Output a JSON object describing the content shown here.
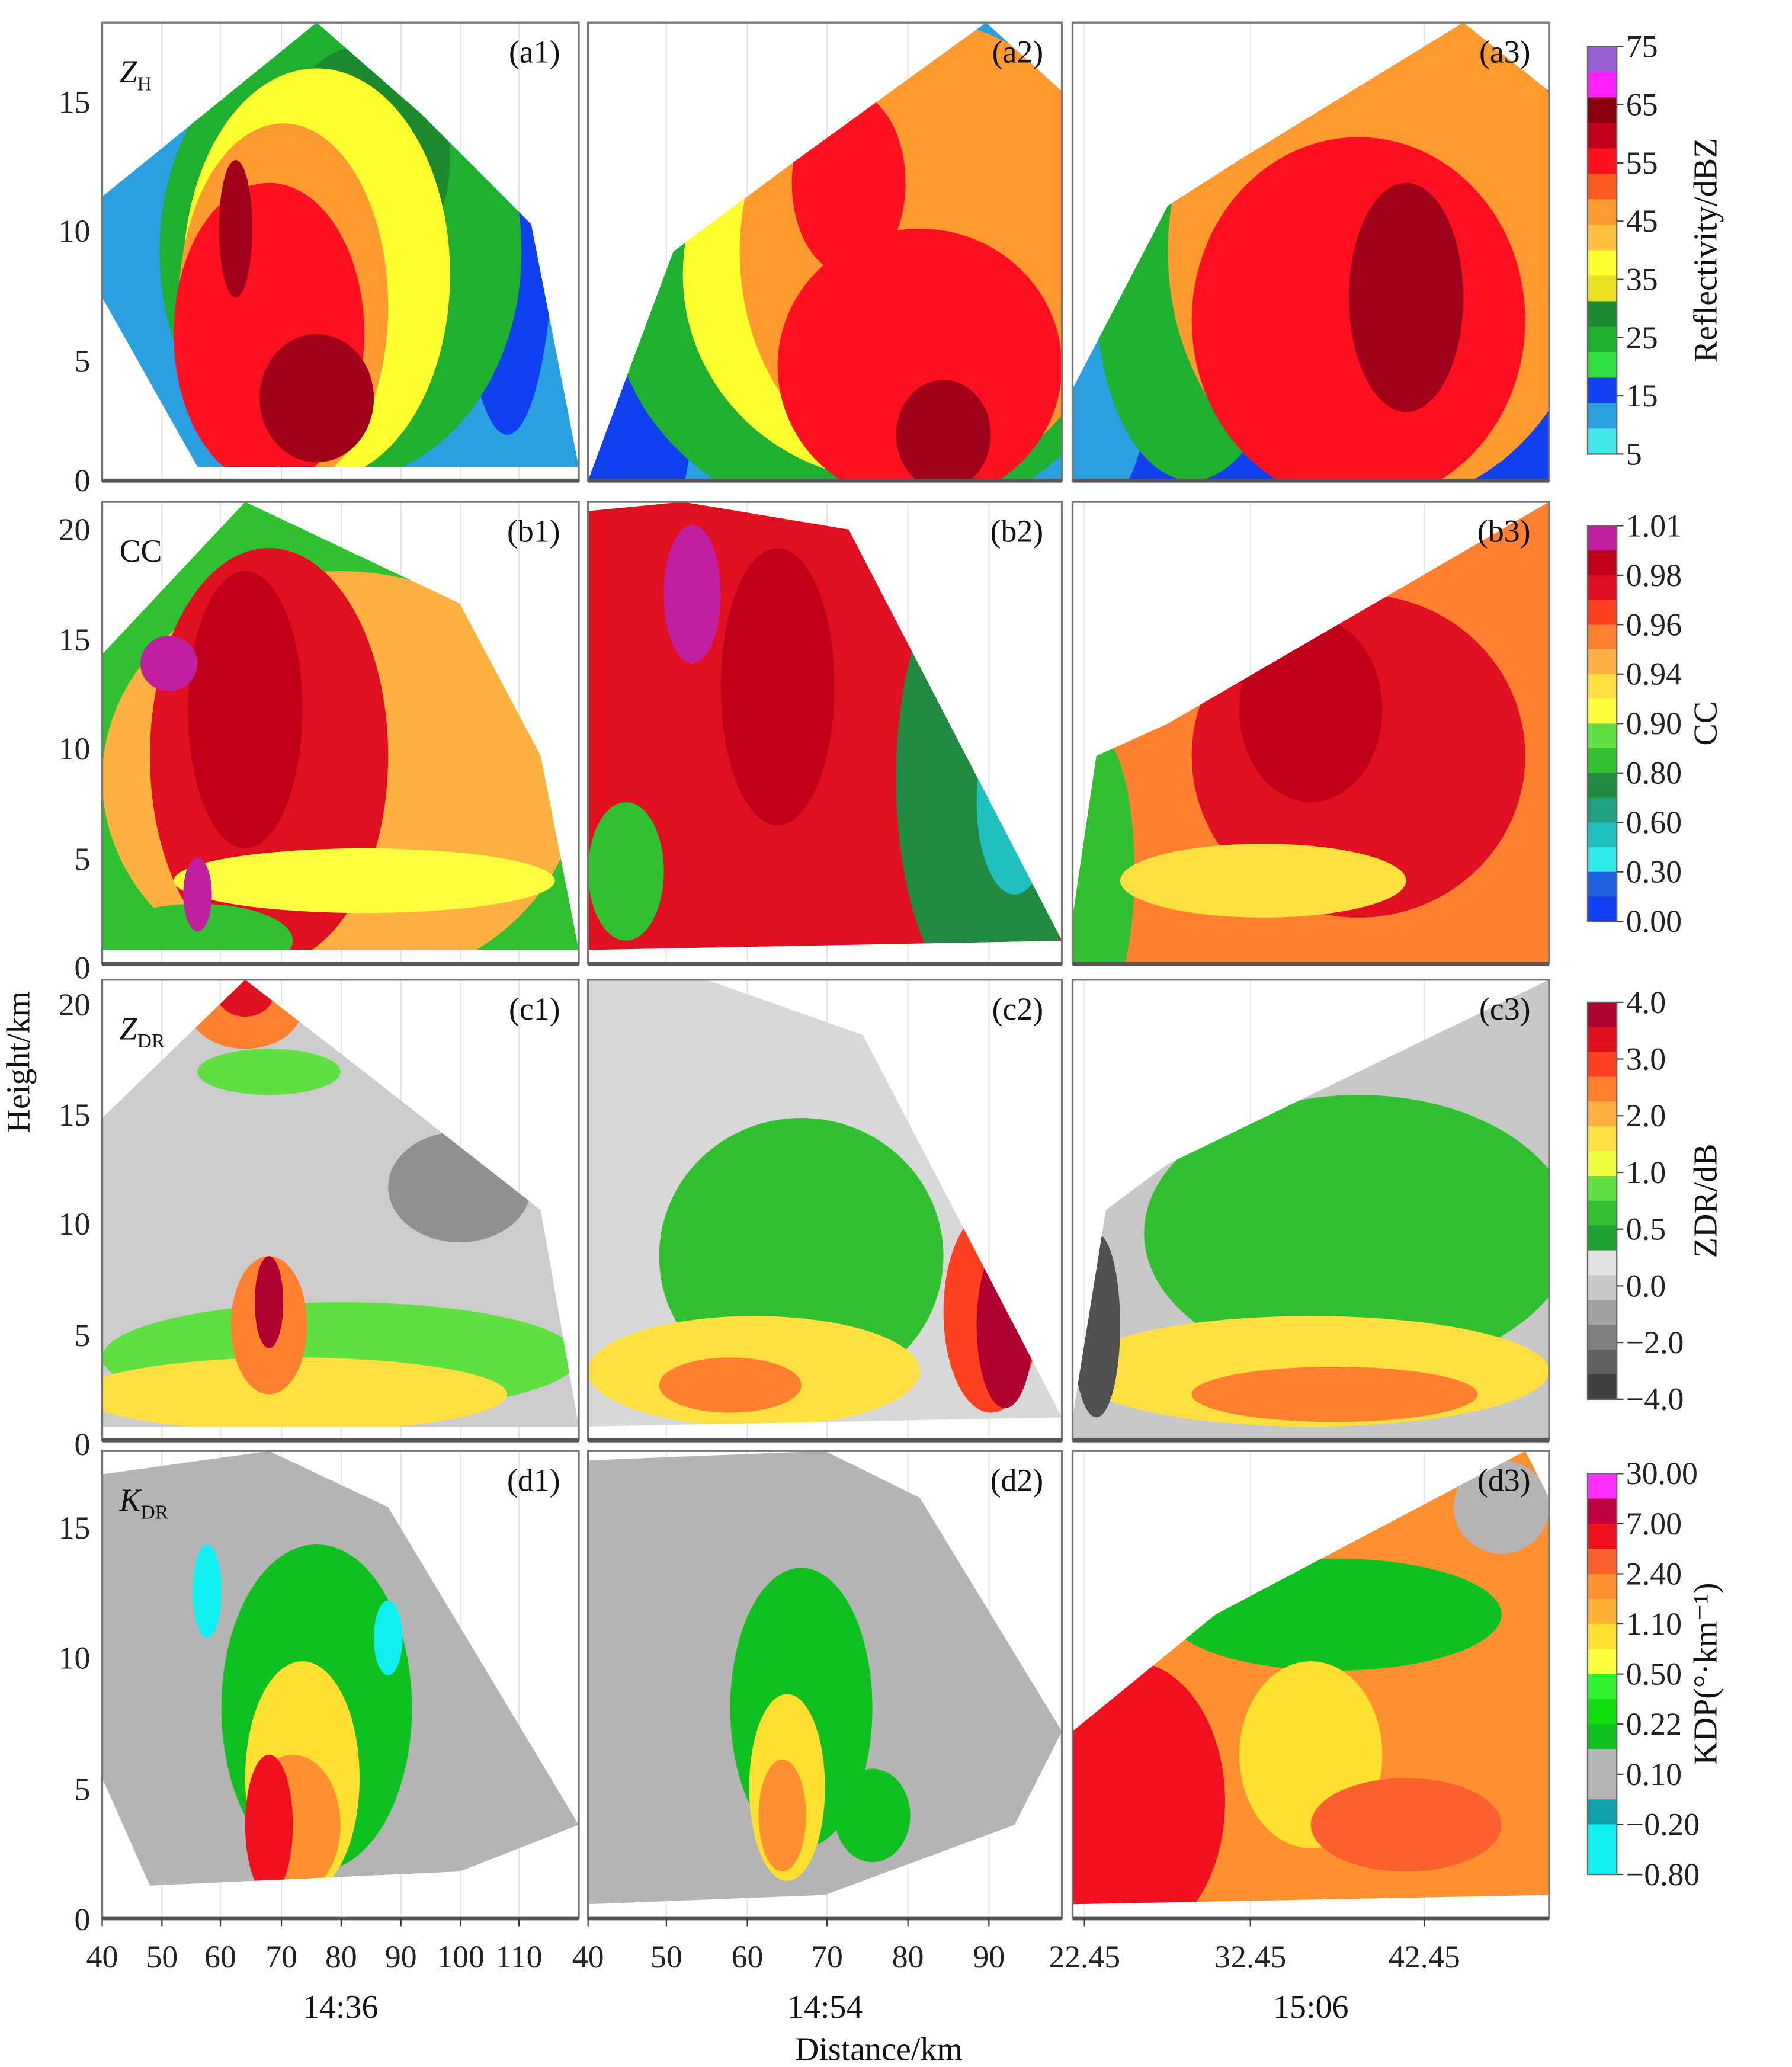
{
  "figure": {
    "ylabel": "Height/km",
    "xlabel": "Distance/km",
    "times": [
      "14:36",
      "14:54",
      "15:06"
    ]
  },
  "chart_data": {
    "type": "heatmap",
    "rows": [
      {
        "variable": "ZH",
        "var_main": "Z",
        "var_sub": "H",
        "yticks": [
          "0",
          "5",
          "10",
          "15"
        ],
        "ylim": [
          0,
          18
        ],
        "panels": [
          "(a1)",
          "(a2)",
          "(a3)"
        ]
      },
      {
        "variable": "CC",
        "var_main": "CC",
        "var_sub": "",
        "yticks": [
          "0",
          "5",
          "10",
          "15",
          "20"
        ],
        "ylim": [
          0,
          21
        ],
        "panels": [
          "(b1)",
          "(b2)",
          "(b3)"
        ]
      },
      {
        "variable": "ZDR",
        "var_main": "Z",
        "var_sub": "DR",
        "yticks": [
          "0",
          "5",
          "10",
          "15",
          "20"
        ],
        "ylim": [
          0,
          21
        ],
        "panels": [
          "(c1)",
          "(c2)",
          "(c3)"
        ]
      },
      {
        "variable": "KDR",
        "var_main": "K",
        "var_sub": "DR",
        "yticks": [
          "0",
          "5",
          "10",
          "15"
        ],
        "ylim": [
          0,
          18
        ],
        "panels": [
          "(d1)",
          "(d2)",
          "(d3)"
        ]
      }
    ],
    "columns": [
      {
        "time": "14:36",
        "xticks": [
          "40",
          "50",
          "60",
          "70",
          "80",
          "90",
          "100",
          "110"
        ],
        "xlim": [
          40,
          119
        ]
      },
      {
        "time": "14:54",
        "xticks": [
          "40",
          "50",
          "60",
          "70",
          "80",
          "90"
        ],
        "xlim": [
          40,
          99
        ]
      },
      {
        "time": "15:06",
        "xticks": [
          "22.45",
          "32.45",
          "42.45"
        ],
        "xlim": [
          22.45,
          50
        ]
      }
    ],
    "colorbars": [
      {
        "title": "Reflectivity/dBZ",
        "ticks": [
          "75",
          "65",
          "55",
          "45",
          "35",
          "25",
          "15",
          "5"
        ],
        "colors": [
          "#9a5fd0",
          "#ff20ff",
          "#8a0010",
          "#c00018",
          "#ff1020",
          "#ff5a20",
          "#ff9a30",
          "#ffc040",
          "#ffff30",
          "#e8e020",
          "#1e8a30",
          "#20b030",
          "#30e040",
          "#1040f0",
          "#2aa0e0",
          "#40e8e8"
        ]
      },
      {
        "title": "CC",
        "ticks": [
          "1.01",
          "0.98",
          "0.96",
          "0.94",
          "0.90",
          "0.80",
          "0.60",
          "0.30",
          "0.00"
        ],
        "colors": [
          "#c020a0",
          "#c00018",
          "#e01020",
          "#ff4020",
          "#ff8030",
          "#ffb040",
          "#ffe040",
          "#ffff40",
          "#60e040",
          "#30c030",
          "#208a40",
          "#20a080",
          "#20c0c0",
          "#30e8e8",
          "#2060e0",
          "#1040f0"
        ]
      },
      {
        "title": "ZDR/dB",
        "ticks": [
          "4.0",
          "3.0",
          "2.0",
          "1.0",
          "0.5",
          "0.0",
          "−2.0",
          "−4.0"
        ],
        "colors": [
          "#b00030",
          "#e01020",
          "#ff4020",
          "#ff8030",
          "#ffb040",
          "#ffe040",
          "#f0ff40",
          "#60e040",
          "#30c030",
          "#20a030",
          "#e0e0e0",
          "#c8c8c8",
          "#a0a0a0",
          "#808080",
          "#606060",
          "#404040"
        ]
      },
      {
        "title": "KDP(°·km⁻¹)",
        "ticks": [
          "30.00",
          "7.00",
          "2.40",
          "1.10",
          "0.50",
          "0.22",
          "0.10",
          "−0.20",
          "−0.80"
        ],
        "colors": [
          "#ff30ff",
          "#c00040",
          "#f01020",
          "#ff6030",
          "#ff9030",
          "#ffb030",
          "#ffe030",
          "#ffff40",
          "#30f030",
          "#10e010",
          "#10c020",
          "#b4b4b4",
          "#b4b4b4",
          "#10a0a8",
          "#10f0f0",
          "#10f0f0"
        ]
      }
    ]
  }
}
